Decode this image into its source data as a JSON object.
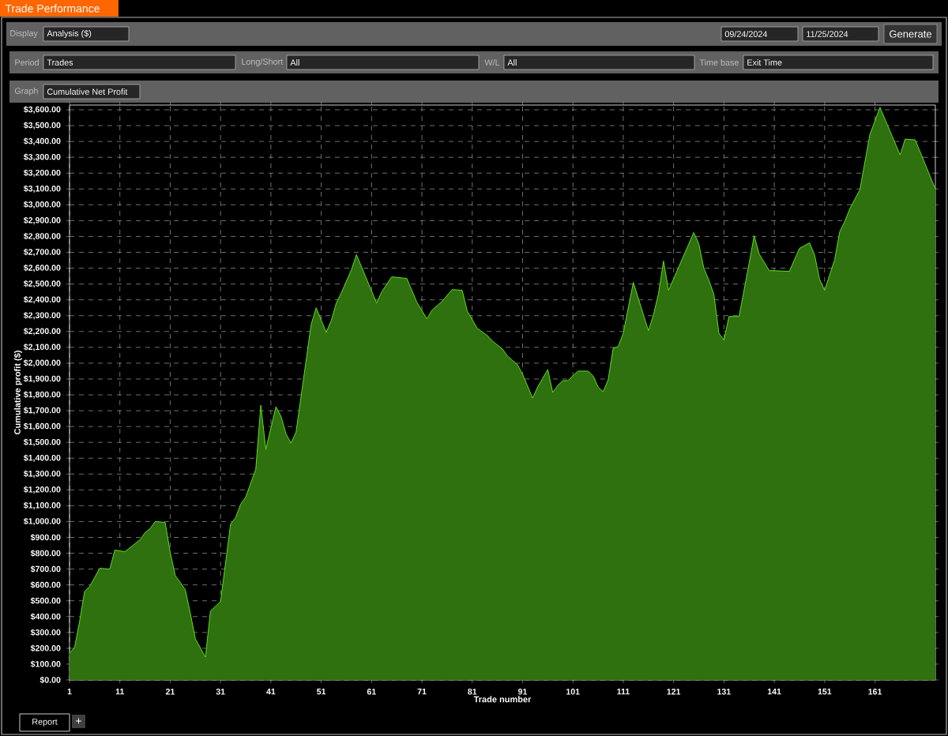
{
  "chart_data": {
    "type": "area",
    "title": "Trade Performance",
    "xlabel": "Trade number",
    "ylabel": "Cumulative profit ($)",
    "annotations": [
      "Display",
      "Analysis ($)",
      "09/24/2024",
      "11/25/2024",
      "Generate",
      "Period",
      "Trades",
      "Long/Short",
      "All",
      "W/L",
      "All",
      "Time base",
      "Exit Time",
      "Graph",
      "Cumulative Net Profit",
      "Report",
      "+"
    ],
    "xlim": [
      1,
      173
    ],
    "xticks": [
      1,
      11,
      21,
      31,
      41,
      51,
      61,
      71,
      81,
      91,
      101,
      111,
      121,
      131,
      141,
      151,
      161
    ],
    "ylim": [
      0,
      3630
    ],
    "yticks": [
      {
        "value": 0,
        "label": "$0.00"
      },
      {
        "value": 100,
        "label": "$100.00"
      },
      {
        "value": 200,
        "label": "$200.00"
      },
      {
        "value": 300,
        "label": "$300.00"
      },
      {
        "value": 400,
        "label": "$400.00"
      },
      {
        "value": 500,
        "label": "$500.00"
      },
      {
        "value": 600,
        "label": "$600.00"
      },
      {
        "value": 700,
        "label": "$700.00"
      },
      {
        "value": 800,
        "label": "$800.00"
      },
      {
        "value": 900,
        "label": "$900.00"
      },
      {
        "value": 1000,
        "label": "$1,000.00"
      },
      {
        "value": 1100,
        "label": "$1,100.00"
      },
      {
        "value": 1200,
        "label": "$1,200.00"
      },
      {
        "value": 1300,
        "label": "$1,300.00"
      },
      {
        "value": 1400,
        "label": "$1,400.00"
      },
      {
        "value": 1500,
        "label": "$1,500.00"
      },
      {
        "value": 1600,
        "label": "$1,600.00"
      },
      {
        "value": 1700,
        "label": "$1,700.00"
      },
      {
        "value": 1800,
        "label": "$1,800.00"
      },
      {
        "value": 1900,
        "label": "$1,900.00"
      },
      {
        "value": 2000,
        "label": "$2,000.00"
      },
      {
        "value": 2100,
        "label": "$2,100.00"
      },
      {
        "value": 2200,
        "label": "$2,200.00"
      },
      {
        "value": 2300,
        "label": "$2,300.00"
      },
      {
        "value": 2400,
        "label": "$2,400.00"
      },
      {
        "value": 2500,
        "label": "$2,500.00"
      },
      {
        "value": 2600,
        "label": "$2,600.00"
      },
      {
        "value": 2700,
        "label": "$2,700.00"
      },
      {
        "value": 2800,
        "label": "$2,800.00"
      },
      {
        "value": 2900,
        "label": "$2,900.00"
      },
      {
        "value": 3000,
        "label": "$3,000.00"
      },
      {
        "value": 3100,
        "label": "$3,100.00"
      },
      {
        "value": 3200,
        "label": "$3,200.00"
      },
      {
        "value": 3300,
        "label": "$3,300.00"
      },
      {
        "value": 3400,
        "label": "$3,400.00"
      },
      {
        "value": 3500,
        "label": "$3,500.00"
      },
      {
        "value": 3600,
        "label": "$3,600.00"
      }
    ],
    "grid": true,
    "line_style": "solid",
    "series": [
      {
        "color": "#5ee01f",
        "x": [
          1,
          2,
          3,
          4,
          5,
          7,
          9,
          10,
          12,
          15,
          16,
          17,
          18,
          20,
          21,
          22,
          24,
          25,
          26,
          28,
          29,
          31,
          33,
          34,
          35,
          36,
          38,
          39,
          40,
          42,
          43,
          44,
          45,
          46,
          49,
          50,
          52,
          53,
          54,
          55,
          57,
          58,
          62,
          63,
          65,
          68,
          70,
          72,
          73,
          75,
          77,
          79,
          80,
          82,
          84,
          85,
          87,
          88,
          90,
          91,
          93,
          94,
          96,
          97,
          98,
          99,
          100,
          102,
          104,
          105,
          106,
          107,
          108,
          109,
          110,
          111,
          113,
          116,
          117,
          118,
          119,
          120,
          125,
          126,
          127,
          128,
          129,
          130,
          131,
          132,
          134,
          136,
          137,
          138,
          140,
          144,
          146,
          148,
          149,
          150,
          151,
          153,
          154,
          155,
          156,
          158,
          160,
          162,
          166,
          167,
          169,
          173
        ],
        "values": [
          170,
          205,
          370,
          560,
          590,
          705,
          700,
          820,
          810,
          885,
          930,
          955,
          1000,
          995,
          805,
          660,
          570,
          420,
          260,
          145,
          435,
          495,
          985,
          1025,
          1110,
          1155,
          1330,
          1735,
          1455,
          1725,
          1665,
          1555,
          1495,
          1565,
          2245,
          2350,
          2195,
          2270,
          2380,
          2445,
          2590,
          2685,
          2380,
          2450,
          2545,
          2535,
          2385,
          2280,
          2335,
          2390,
          2465,
          2460,
          2330,
          2220,
          2175,
          2140,
          2090,
          2045,
          1990,
          1930,
          1780,
          1850,
          1960,
          1815,
          1860,
          1890,
          1890,
          1950,
          1950,
          1920,
          1850,
          1820,
          1895,
          2095,
          2105,
          2190,
          2510,
          2205,
          2305,
          2440,
          2645,
          2460,
          2825,
          2755,
          2600,
          2525,
          2435,
          2190,
          2145,
          2295,
          2295,
          2630,
          2805,
          2690,
          2585,
          2580,
          2725,
          2760,
          2685,
          2530,
          2460,
          2655,
          2830,
          2895,
          2975,
          3095,
          3445,
          3615,
          3315,
          3415,
          3410,
          3100
        ]
      }
    ]
  }
}
